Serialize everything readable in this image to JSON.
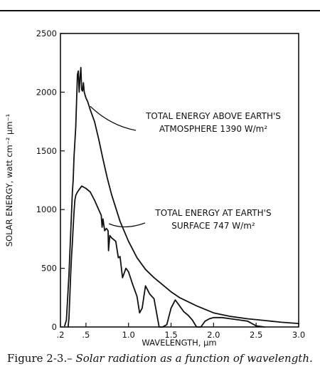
{
  "chart_data": {
    "type": "line",
    "xlabel": "WAVELENGTH, µm",
    "ylabel": "SOLAR ENERGY, watt cm⁻² µm⁻¹",
    "xlim": [
      0.2,
      3.0
    ],
    "ylim": [
      0,
      2500
    ],
    "x_ticks": [
      0.2,
      0.5,
      1.0,
      1.5,
      2.0,
      2.5,
      3.0
    ],
    "x_tick_labels": [
      ".2",
      ".5",
      "1.0",
      "1.5",
      "2.0",
      "2.5",
      "3.0"
    ],
    "y_ticks": [
      0,
      500,
      1000,
      1500,
      2000,
      2500
    ],
    "y_tick_labels": [
      "0",
      "500",
      "1000",
      "1500",
      "2000",
      "2500"
    ],
    "grid": false,
    "series": [
      {
        "id": "above",
        "x": [
          0.25,
          0.27,
          0.3,
          0.32,
          0.34,
          0.35,
          0.36,
          0.38,
          0.4,
          0.41,
          0.42,
          0.43,
          0.44,
          0.45,
          0.46,
          0.47,
          0.48,
          0.5,
          0.52,
          0.55,
          0.6,
          0.65,
          0.7,
          0.75,
          0.8,
          0.9,
          1.0,
          1.1,
          1.2,
          1.3,
          1.4,
          1.5,
          1.6,
          1.8,
          2.0,
          2.2,
          2.4,
          2.6,
          2.8,
          3.0
        ],
        "y": [
          10,
          60,
          450,
          800,
          1150,
          1250,
          1450,
          1700,
          2150,
          2180,
          2000,
          2120,
          2210,
          2020,
          2010,
          2080,
          2000,
          1950,
          1920,
          1850,
          1750,
          1600,
          1430,
          1270,
          1130,
          900,
          730,
          590,
          490,
          420,
          360,
          300,
          250,
          180,
          120,
          90,
          70,
          55,
          40,
          30
        ]
      },
      {
        "id": "surface",
        "x": [
          0.29,
          0.3,
          0.31,
          0.32,
          0.33,
          0.34,
          0.35,
          0.36,
          0.37,
          0.38,
          0.4,
          0.45,
          0.5,
          0.55,
          0.6,
          0.65,
          0.68,
          0.69,
          0.7,
          0.72,
          0.74,
          0.76,
          0.765,
          0.78,
          0.8,
          0.85,
          0.88,
          0.9,
          0.93,
          0.95,
          0.97,
          1.0,
          1.05,
          1.1,
          1.13,
          1.16,
          1.2,
          1.25,
          1.3,
          1.34,
          1.36,
          1.4,
          1.45,
          1.5,
          1.55,
          1.6,
          1.65,
          1.7,
          1.75,
          1.8,
          1.85,
          1.9,
          1.95,
          2.0,
          2.1,
          2.2,
          2.3,
          2.4,
          2.5,
          2.6
        ],
        "y": [
          0,
          80,
          260,
          450,
          600,
          720,
          850,
          980,
          1080,
          1120,
          1150,
          1200,
          1180,
          1150,
          1080,
          1000,
          950,
          850,
          920,
          820,
          840,
          820,
          650,
          780,
          760,
          730,
          590,
          600,
          420,
          460,
          500,
          470,
          360,
          260,
          120,
          160,
          350,
          280,
          240,
          80,
          0,
          0,
          20,
          160,
          230,
          180,
          130,
          100,
          60,
          0,
          0,
          50,
          70,
          80,
          80,
          70,
          60,
          50,
          10,
          0
        ]
      }
    ],
    "annotations": [
      {
        "series": "above",
        "lines": [
          "TOTAL ENERGY ABOVE EARTH'S",
          "ATMOSPHERE 1390 W/m²"
        ],
        "point": [
          0.55,
          1880
        ]
      },
      {
        "series": "surface",
        "lines": [
          "TOTAL ENERGY AT EARTH'S",
          "SURFACE 747 W/m²"
        ],
        "point": [
          0.77,
          880
        ]
      }
    ]
  },
  "caption": {
    "prefix": "Figure 2-3.–",
    "text": " Solar radiation as a function of wavelength."
  }
}
